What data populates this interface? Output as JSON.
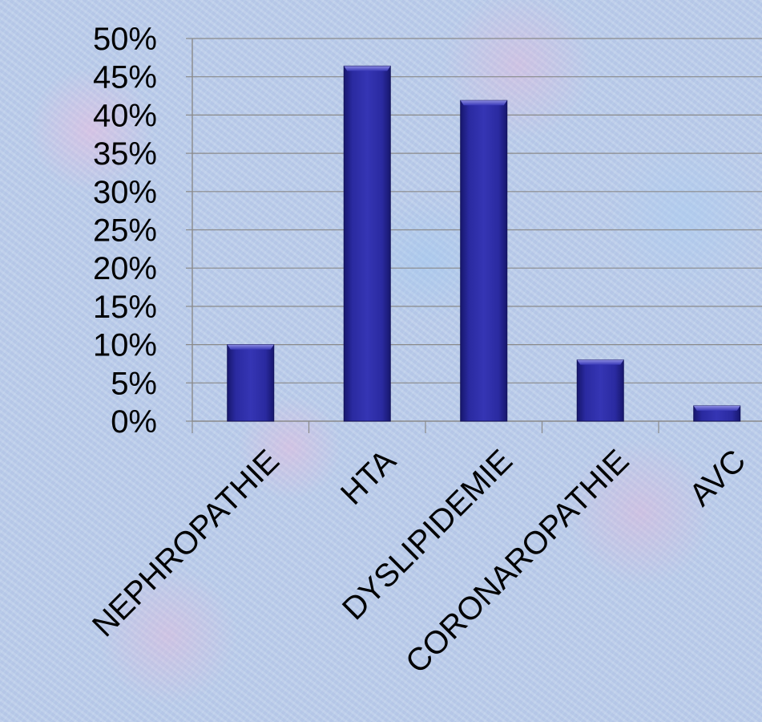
{
  "chart_data": {
    "type": "bar",
    "categories": [
      "NEPHROPATHIE",
      "HTA",
      "DYSLIPIDEMIE",
      "CORONAROPATHIE",
      "AVC"
    ],
    "values": [
      10,
      46.4,
      41.9,
      8,
      2
    ],
    "ytick_labels": [
      "0%",
      "5%",
      "10%",
      "15%",
      "20%",
      "25%",
      "30%",
      "35%",
      "40%",
      "45%",
      "50%"
    ],
    "ylim": [
      0,
      50
    ],
    "y_unit": "%",
    "grid": true,
    "legend": "none",
    "bar_color": "#2b2b9e",
    "bar_highlight": "#5656c8",
    "bar_shadow": "#161668",
    "grid_color": "#8a8a8a"
  }
}
